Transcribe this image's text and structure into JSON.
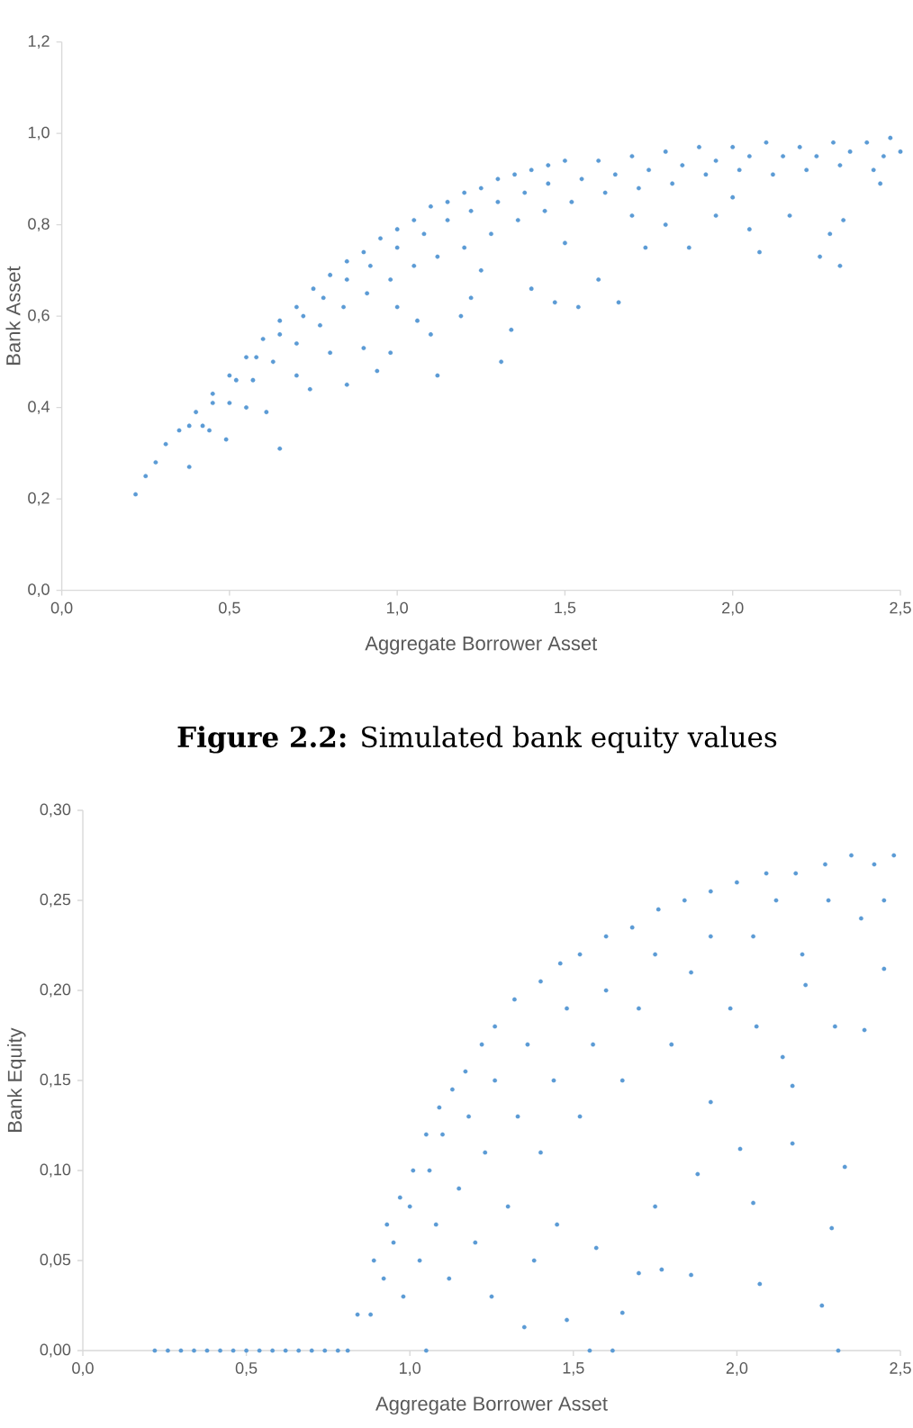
{
  "chart_data": [
    {
      "type": "scatter",
      "xlabel": "Aggregate Borrower Asset",
      "ylabel": "Bank Asset",
      "color": "#5b9bd5",
      "marker": "circle",
      "xlim": [
        0,
        2.5
      ],
      "xticks": [
        {
          "value": 0,
          "label": "0,0"
        },
        {
          "value": 0.5,
          "label": "0,5"
        },
        {
          "value": 1,
          "label": "1,0"
        },
        {
          "value": 1.5,
          "label": "1,5"
        },
        {
          "value": 2,
          "label": "2,0"
        },
        {
          "value": 2.5,
          "label": "2,5"
        }
      ],
      "ylim": [
        0,
        1.2
      ],
      "yticks": [
        {
          "value": 0,
          "label": "0,0"
        },
        {
          "value": 0.2,
          "label": "0,2"
        },
        {
          "value": 0.4,
          "label": "0,4"
        },
        {
          "value": 0.6,
          "label": "0,6"
        },
        {
          "value": 0.8,
          "label": "0,8"
        },
        {
          "value": 1,
          "label": "1,0"
        },
        {
          "value": 1.2,
          "label": "1,2"
        }
      ],
      "x": [
        0.22,
        0.25,
        0.28,
        0.31,
        0.35,
        0.4,
        0.45,
        0.5,
        0.55,
        0.6,
        0.65,
        0.7,
        0.75,
        0.8,
        0.85,
        0.9,
        0.95,
        1.0,
        1.05,
        1.1,
        1.15,
        1.2,
        1.25,
        1.3,
        1.35,
        1.4,
        1.45,
        1.5,
        1.6,
        1.7,
        1.8,
        1.9,
        2.0,
        2.1,
        2.2,
        2.3,
        2.4,
        2.47,
        2.5,
        0.38,
        0.45,
        0.52,
        0.58,
        0.65,
        0.72,
        0.78,
        0.85,
        0.92,
        1.0,
        1.08,
        1.15,
        1.22,
        1.3,
        1.38,
        1.45,
        1.55,
        1.65,
        1.75,
        1.85,
        1.95,
        2.05,
        2.15,
        2.25,
        2.35,
        2.45,
        0.42,
        0.5,
        0.57,
        0.63,
        0.7,
        0.77,
        0.84,
        0.91,
        0.98,
        1.05,
        1.12,
        1.2,
        1.28,
        1.36,
        1.44,
        1.52,
        1.62,
        1.72,
        1.82,
        1.92,
        2.02,
        2.12,
        2.22,
        2.32,
        2.42,
        0.38,
        0.44,
        0.49,
        0.61,
        0.65,
        0.74,
        0.85,
        0.9,
        0.94,
        0.98,
        1.06,
        1.1,
        1.12,
        1.19,
        1.22,
        1.31,
        1.34,
        1.4,
        1.47,
        1.54,
        1.6,
        1.66,
        1.74,
        1.8,
        1.87,
        1.95,
        2.05,
        2.08,
        2.17,
        2.26,
        2.29,
        2.32,
        2.33,
        2.44,
        0.55,
        0.7,
        0.8,
        1.0,
        1.25,
        1.5,
        1.7,
        2.0
      ],
      "values": [
        0.21,
        0.25,
        0.28,
        0.32,
        0.35,
        0.39,
        0.43,
        0.47,
        0.51,
        0.55,
        0.59,
        0.62,
        0.66,
        0.69,
        0.72,
        0.74,
        0.77,
        0.79,
        0.81,
        0.84,
        0.85,
        0.87,
        0.88,
        0.9,
        0.91,
        0.92,
        0.93,
        0.94,
        0.94,
        0.95,
        0.96,
        0.97,
        0.97,
        0.98,
        0.97,
        0.98,
        0.98,
        0.99,
        0.96,
        0.36,
        0.41,
        0.46,
        0.51,
        0.56,
        0.6,
        0.64,
        0.68,
        0.71,
        0.75,
        0.78,
        0.81,
        0.83,
        0.85,
        0.87,
        0.89,
        0.9,
        0.91,
        0.92,
        0.93,
        0.94,
        0.95,
        0.95,
        0.95,
        0.96,
        0.95,
        0.36,
        0.41,
        0.46,
        0.5,
        0.54,
        0.58,
        0.62,
        0.65,
        0.68,
        0.71,
        0.73,
        0.75,
        0.78,
        0.81,
        0.83,
        0.85,
        0.87,
        0.88,
        0.89,
        0.91,
        0.92,
        0.91,
        0.92,
        0.93,
        0.92,
        0.27,
        0.35,
        0.33,
        0.39,
        0.31,
        0.44,
        0.45,
        0.53,
        0.48,
        0.52,
        0.59,
        0.56,
        0.47,
        0.6,
        0.64,
        0.5,
        0.57,
        0.66,
        0.63,
        0.62,
        0.68,
        0.63,
        0.75,
        0.8,
        0.75,
        0.82,
        0.79,
        0.74,
        0.82,
        0.73,
        0.78,
        0.71,
        0.81,
        0.89,
        0.4,
        0.47,
        0.52,
        0.62,
        0.7,
        0.76,
        0.82,
        0.86
      ]
    },
    {
      "type": "scatter",
      "title": "**Figure 2.2:** Simulated bank equity values",
      "xlabel": "Aggregate Borrower Asset",
      "ylabel": "Bank Equity",
      "color": "#5b9bd5",
      "marker": "circle",
      "xlim": [
        0,
        2.5
      ],
      "xticks": [
        {
          "value": 0,
          "label": "0,0"
        },
        {
          "value": 0.5,
          "label": "0,5"
        },
        {
          "value": 1,
          "label": "1,0"
        },
        {
          "value": 1.5,
          "label": "1,5"
        },
        {
          "value": 2,
          "label": "2,0"
        },
        {
          "value": 2.5,
          "label": "2,5"
        }
      ],
      "ylim": [
        0,
        0.3
      ],
      "yticks": [
        {
          "value": 0,
          "label": "0,00"
        },
        {
          "value": 0.05,
          "label": "0,05"
        },
        {
          "value": 0.1,
          "label": "0,10"
        },
        {
          "value": 0.15,
          "label": "0,15"
        },
        {
          "value": 0.2,
          "label": "0,20"
        },
        {
          "value": 0.25,
          "label": "0,25"
        },
        {
          "value": 0.3,
          "label": "0,30"
        }
      ],
      "x": [
        0.22,
        0.26,
        0.3,
        0.34,
        0.38,
        0.42,
        0.46,
        0.5,
        0.54,
        0.58,
        0.62,
        0.66,
        0.7,
        0.74,
        0.78,
        0.81,
        0.84,
        0.89,
        0.93,
        0.97,
        1.01,
        1.05,
        1.09,
        1.13,
        1.17,
        1.22,
        1.26,
        1.32,
        1.4,
        1.46,
        1.52,
        1.6,
        1.68,
        1.76,
        1.84,
        1.92,
        2.0,
        2.09,
        2.18,
        2.27,
        2.35,
        2.42,
        2.48,
        0.88,
        0.92,
        0.95,
        0.98,
        1.0,
        1.03,
        1.06,
        1.08,
        1.1,
        1.12,
        1.15,
        1.18,
        1.2,
        1.23,
        1.26,
        1.3,
        1.33,
        1.36,
        1.4,
        1.44,
        1.48,
        1.52,
        1.56,
        1.6,
        1.65,
        1.7,
        1.75,
        1.8,
        1.86,
        1.92,
        1.98,
        2.05,
        2.12,
        2.2,
        2.28,
        2.38,
        2.45,
        1.35,
        1.48,
        1.57,
        1.65,
        1.7,
        1.75,
        1.86,
        1.88,
        1.92,
        2.01,
        2.05,
        2.07,
        2.14,
        2.17,
        2.17,
        2.21,
        2.26,
        2.29,
        2.3,
        2.33,
        2.39,
        2.45,
        2.06,
        1.77,
        1.25,
        1.45,
        1.38,
        1.05,
        1.55,
        1.62,
        2.31
      ],
      "values": [
        0,
        0,
        0,
        0,
        0,
        0,
        0,
        0,
        0,
        0,
        0,
        0,
        0,
        0,
        0,
        0,
        0.02,
        0.05,
        0.07,
        0.085,
        0.1,
        0.12,
        0.135,
        0.145,
        0.155,
        0.17,
        0.18,
        0.195,
        0.205,
        0.215,
        0.22,
        0.23,
        0.235,
        0.245,
        0.25,
        0.255,
        0.26,
        0.265,
        0.265,
        0.27,
        0.275,
        0.27,
        0.275,
        0.02,
        0.04,
        0.06,
        0.03,
        0.08,
        0.05,
        0.1,
        0.07,
        0.12,
        0.04,
        0.09,
        0.13,
        0.06,
        0.11,
        0.15,
        0.08,
        0.13,
        0.17,
        0.11,
        0.15,
        0.19,
        0.13,
        0.17,
        0.2,
        0.15,
        0.19,
        0.22,
        0.17,
        0.21,
        0.23,
        0.19,
        0.23,
        0.25,
        0.22,
        0.25,
        0.24,
        0.25,
        0.013,
        0.017,
        0.057,
        0.021,
        0.043,
        0.08,
        0.042,
        0.098,
        0.138,
        0.112,
        0.082,
        0.037,
        0.163,
        0.147,
        0.115,
        0.203,
        0.025,
        0.068,
        0.18,
        0.102,
        0.178,
        0.212,
        0.18,
        0.045,
        0.03,
        0.07,
        0.05,
        0,
        0,
        0,
        0
      ]
    }
  ]
}
